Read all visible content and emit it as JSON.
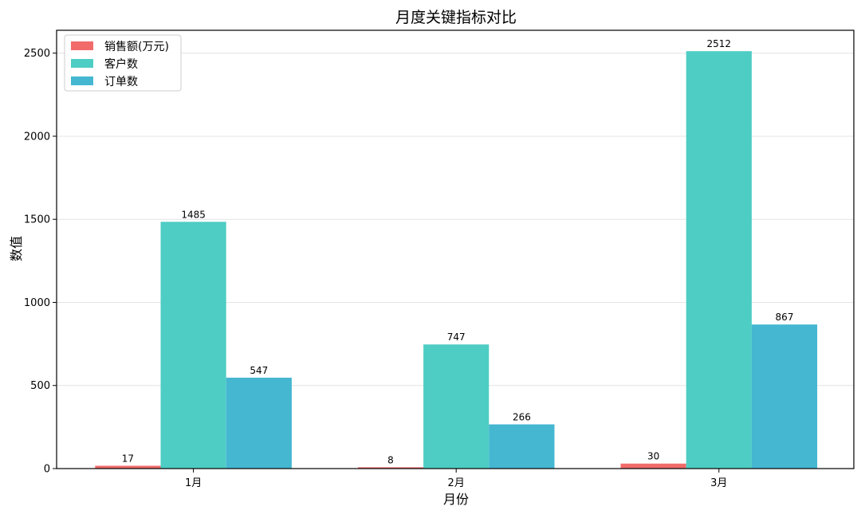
{
  "chart_data": {
    "type": "bar",
    "title": "月度关键指标对比",
    "xlabel": "月份",
    "ylabel": "数值",
    "categories": [
      "1月",
      "2月",
      "3月"
    ],
    "series": [
      {
        "name": "销售额(万元)",
        "values": [
          17,
          8,
          30
        ],
        "color": "#F26B6B"
      },
      {
        "name": "客户数",
        "values": [
          1485,
          747,
          2512
        ],
        "color": "#4ECDC4"
      },
      {
        "name": "订单数",
        "values": [
          547,
          266,
          867
        ],
        "color": "#45B7D1"
      }
    ],
    "ylim": [
      0,
      2637.6
    ],
    "yticks": [
      0,
      500,
      1000,
      1500,
      2000,
      2500
    ],
    "grid": "y",
    "legend": "top-left"
  }
}
